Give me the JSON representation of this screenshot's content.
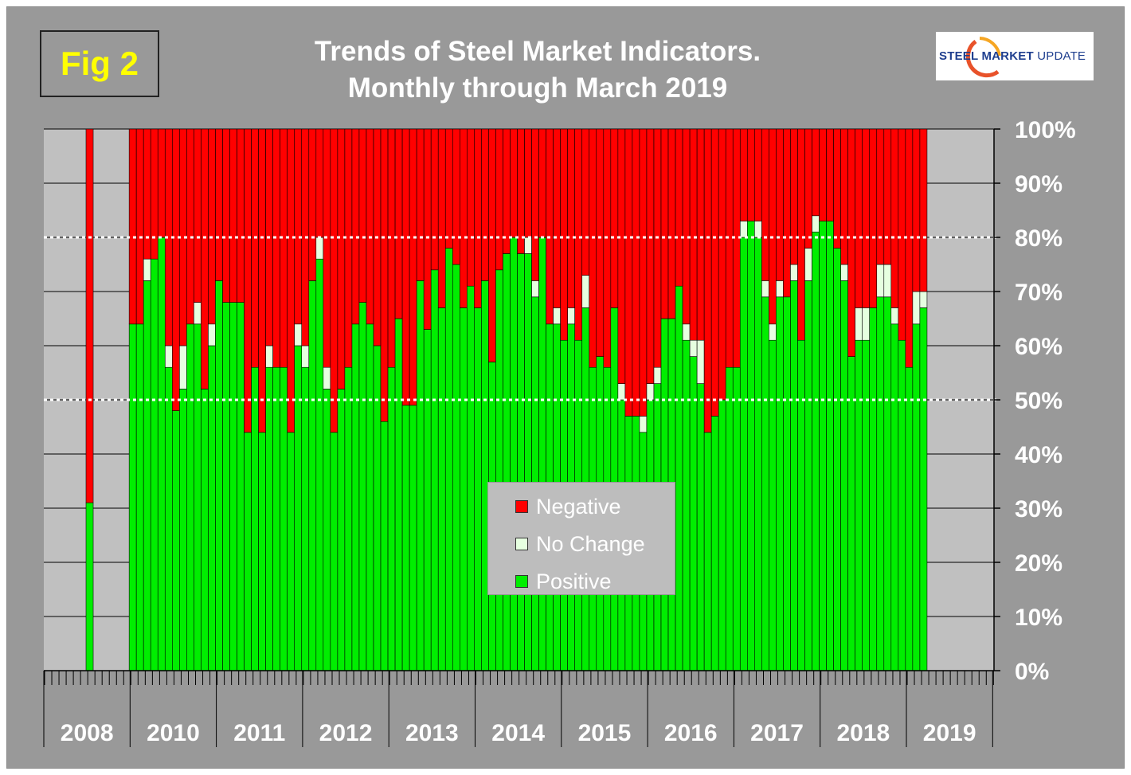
{
  "fig_label": "Fig 2",
  "title_line1": "Trends of Steel Market Indicators.",
  "title_line2": "Monthly through March 2019",
  "logo": {
    "word1": "STEEL",
    "word2": "MARKET",
    "word3": "UPDATE",
    "colors": {
      "text": "#1f3f8f",
      "swoosh": "#e8522a"
    }
  },
  "colors": {
    "negative": "#ff0000",
    "no_change": "#e6ffe0",
    "positive": "#00ee00",
    "plot_bg": "#c0c0c0",
    "frame_bg": "#999999"
  },
  "chart_data": {
    "type": "bar",
    "stacked": true,
    "title": "Trends of Steel Market Indicators. Monthly through March 2019",
    "ylabel": "",
    "ylim": [
      0,
      100
    ],
    "y_ticks": [
      "0%",
      "10%",
      "20%",
      "30%",
      "40%",
      "50%",
      "60%",
      "70%",
      "80%",
      "90%",
      "100%"
    ],
    "reference_lines": [
      50,
      80
    ],
    "x_axis_years": [
      "2008",
      "2010",
      "2011",
      "2012",
      "2013",
      "2014",
      "2015",
      "2016",
      "2017",
      "2018",
      "2019"
    ],
    "legend": [
      "Negative",
      "No Change",
      "Positive"
    ],
    "legend_position": "center",
    "first_month_slot": 4,
    "series_order": [
      "Positive",
      "No Change",
      "Negative"
    ],
    "positive": [
      31,
      0,
      0,
      0,
      0,
      0,
      64,
      64,
      72,
      76,
      80,
      56,
      48,
      52,
      64,
      64,
      52,
      60,
      72,
      68,
      68,
      68,
      44,
      56,
      44,
      56,
      56,
      56,
      44,
      60,
      56,
      72,
      76,
      52,
      44,
      52,
      56,
      64,
      68,
      64,
      60,
      46,
      56,
      65,
      49,
      49,
      72,
      63,
      74,
      67,
      78,
      75,
      67,
      71,
      67,
      72,
      57,
      74,
      77,
      80,
      77,
      77,
      69,
      80,
      64,
      64,
      61,
      64,
      61,
      67,
      56,
      58,
      56,
      67,
      50,
      47,
      47,
      44,
      50,
      53,
      65,
      65,
      71,
      61,
      58,
      53,
      44,
      47,
      50,
      56,
      56,
      80,
      83,
      80,
      69,
      61,
      69,
      69,
      72,
      61,
      72,
      81,
      83,
      83,
      78,
      72,
      58,
      61,
      61,
      67,
      69,
      69,
      64,
      61,
      56,
      64,
      67
    ],
    "no_change": [
      0,
      0,
      0,
      0,
      0,
      0,
      0,
      0,
      4,
      0,
      0,
      4,
      0,
      8,
      0,
      4,
      0,
      4,
      0,
      0,
      0,
      0,
      0,
      0,
      0,
      4,
      0,
      0,
      0,
      4,
      4,
      0,
      4,
      4,
      0,
      0,
      0,
      0,
      0,
      0,
      0,
      0,
      0,
      0,
      0,
      0,
      0,
      0,
      0,
      0,
      0,
      0,
      0,
      0,
      0,
      0,
      0,
      0,
      0,
      0,
      0,
      3,
      3,
      0,
      0,
      3,
      0,
      3,
      0,
      6,
      0,
      0,
      0,
      0,
      3,
      0,
      0,
      3,
      3,
      3,
      0,
      0,
      0,
      3,
      3,
      8,
      0,
      0,
      0,
      0,
      0,
      3,
      0,
      3,
      3,
      3,
      3,
      0,
      3,
      0,
      6,
      3,
      0,
      0,
      0,
      3,
      0,
      6,
      6,
      0,
      6,
      6,
      3,
      0,
      0,
      6,
      3
    ],
    "negative": [
      69,
      0,
      0,
      0,
      0,
      0,
      36,
      36,
      24,
      24,
      20,
      40,
      52,
      40,
      36,
      32,
      48,
      36,
      28,
      32,
      32,
      32,
      56,
      44,
      56,
      40,
      44,
      44,
      56,
      36,
      40,
      28,
      20,
      44,
      56,
      48,
      44,
      36,
      32,
      36,
      40,
      54,
      44,
      35,
      51,
      51,
      28,
      37,
      26,
      33,
      22,
      25,
      33,
      29,
      33,
      28,
      43,
      26,
      23,
      20,
      23,
      20,
      28,
      20,
      36,
      33,
      39,
      33,
      39,
      27,
      44,
      42,
      44,
      33,
      47,
      53,
      53,
      53,
      47,
      44,
      35,
      35,
      29,
      36,
      39,
      39,
      56,
      53,
      50,
      44,
      44,
      17,
      17,
      17,
      28,
      36,
      28,
      31,
      25,
      39,
      22,
      16,
      17,
      17,
      22,
      25,
      42,
      33,
      33,
      33,
      25,
      25,
      33,
      39,
      44,
      30,
      30
    ]
  }
}
